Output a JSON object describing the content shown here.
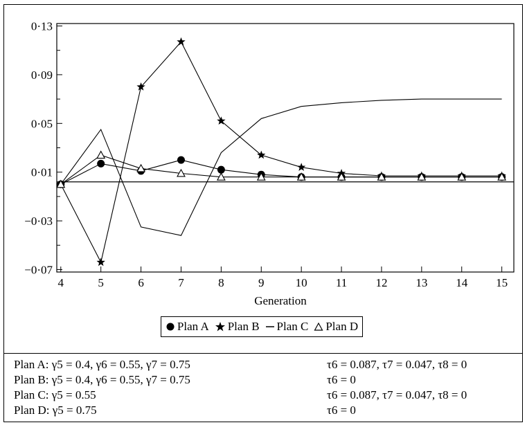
{
  "chart_data": {
    "type": "line",
    "xlabel": "Generation",
    "ylabel": "",
    "x": [
      4,
      5,
      6,
      7,
      8,
      9,
      10,
      11,
      12,
      13,
      14,
      15
    ],
    "xlim": [
      3.9,
      15.3
    ],
    "ylim": [
      -0.072,
      0.132
    ],
    "y_ticks": [
      0.13,
      0.09,
      0.05,
      0.01,
      -0.03,
      -0.07
    ],
    "y_tick_labels": [
      "0·13",
      "0·09",
      "0·05",
      "0·01",
      "−0·03",
      "−0·07"
    ],
    "x_tick_labels": [
      "4",
      "5",
      "6",
      "7",
      "8",
      "9",
      "10",
      "11",
      "12",
      "13",
      "14",
      "15"
    ],
    "reference_line_y": 0.002,
    "series": [
      {
        "name": "Plan A",
        "marker": "circle",
        "values": [
          0.0,
          0.017,
          0.011,
          0.02,
          0.012,
          0.008,
          0.006,
          0.006,
          0.006,
          0.006,
          0.006,
          0.006
        ]
      },
      {
        "name": "Plan B",
        "marker": "star",
        "values": [
          0.0,
          -0.064,
          0.08,
          0.117,
          0.052,
          0.024,
          0.014,
          0.009,
          0.007,
          0.007,
          0.007,
          0.007
        ]
      },
      {
        "name": "Plan C",
        "marker": "none",
        "values": [
          0.0,
          0.045,
          -0.035,
          -0.042,
          0.026,
          0.054,
          0.064,
          0.067,
          0.069,
          0.07,
          0.07,
          0.07
        ]
      },
      {
        "name": "Plan D",
        "marker": "triangle",
        "values": [
          0.0,
          0.024,
          0.013,
          0.009,
          0.006,
          0.006,
          0.006,
          0.006,
          0.006,
          0.006,
          0.006,
          0.006
        ]
      }
    ],
    "legend": [
      "Plan A",
      "Plan B",
      "Plan C",
      "Plan D"
    ],
    "legend_position": "bottom-center",
    "grid": false
  },
  "notes": [
    {
      "left": "Plan A: γ5 = 0.4, γ6 = 0.55, γ7 = 0.75",
      "right": "τ6 = 0.087, τ7 = 0.047, τ8 = 0"
    },
    {
      "left": "Plan B: γ5 = 0.4, γ6 = 0.55, γ7 = 0.75",
      "right": "τ6 = 0"
    },
    {
      "left": "Plan C: γ5 = 0.55",
      "right": "τ6 = 0.087, τ7 = 0.047, τ8 = 0"
    },
    {
      "left": "Plan D: γ5 = 0.75",
      "right": "τ6 = 0"
    }
  ]
}
